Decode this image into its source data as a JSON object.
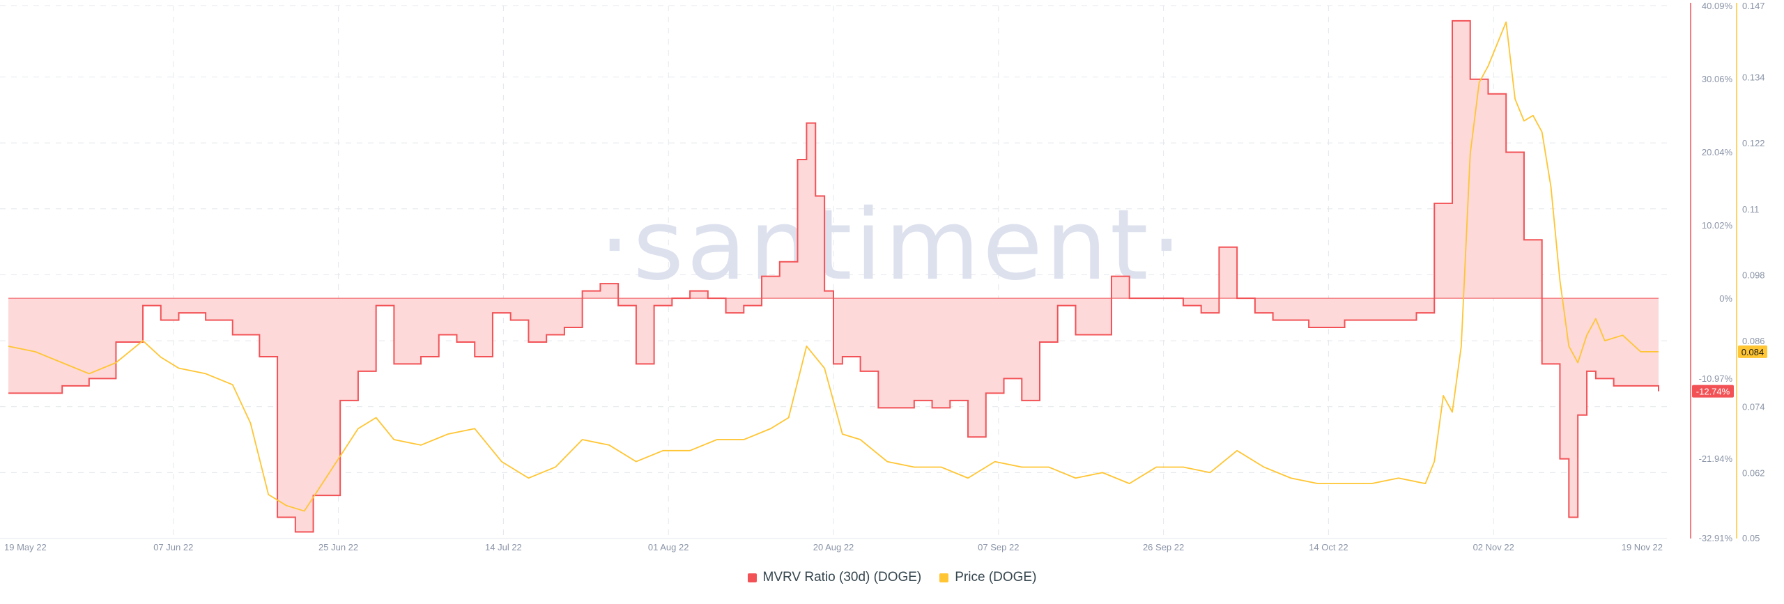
{
  "watermark": "·santiment·",
  "chart_data": {
    "type": "line",
    "x_ticks": [
      "19 May 22",
      "07 Jun 22",
      "25 Jun 22",
      "14 Jul 22",
      "01 Aug 22",
      "20 Aug 22",
      "07 Sep 22",
      "26 Sep 22",
      "14 Oct 22",
      "02 Nov 22",
      "19 Nov 22"
    ],
    "x_start": "2022-05-19",
    "x_end": "2022-11-19",
    "left_axis": {
      "ticks": [
        "40.09%",
        "30.06%",
        "20.04%",
        "10.02%",
        "0%",
        "-10.97%",
        "-21.94%",
        "-32.91%"
      ],
      "range": [
        -32.91,
        40.09
      ],
      "unit": "%"
    },
    "right_axis": {
      "ticks": [
        "0.147",
        "0.134",
        "0.122",
        "0.11",
        "0.098",
        "0.086",
        "0.074",
        "0.062",
        "0.05"
      ],
      "range": [
        0.05,
        0.147
      ]
    },
    "series": [
      {
        "name": "MVRV Ratio (30d) (DOGE)",
        "color": "#f25256",
        "fill": "#fdd9da",
        "axis": "left",
        "current_label": "-12.74%",
        "x": [
          "2022-05-19",
          "2022-05-22",
          "2022-05-25",
          "2022-05-28",
          "2022-05-31",
          "2022-06-03",
          "2022-06-05",
          "2022-06-07",
          "2022-06-10",
          "2022-06-13",
          "2022-06-16",
          "2022-06-18",
          "2022-06-20",
          "2022-06-22",
          "2022-06-25",
          "2022-06-27",
          "2022-06-29",
          "2022-07-01",
          "2022-07-04",
          "2022-07-06",
          "2022-07-08",
          "2022-07-10",
          "2022-07-12",
          "2022-07-14",
          "2022-07-16",
          "2022-07-18",
          "2022-07-20",
          "2022-07-22",
          "2022-07-24",
          "2022-07-26",
          "2022-07-28",
          "2022-07-30",
          "2022-08-01",
          "2022-08-03",
          "2022-08-05",
          "2022-08-07",
          "2022-08-09",
          "2022-08-11",
          "2022-08-13",
          "2022-08-15",
          "2022-08-16",
          "2022-08-17",
          "2022-08-18",
          "2022-08-19",
          "2022-08-20",
          "2022-08-22",
          "2022-08-24",
          "2022-08-26",
          "2022-08-28",
          "2022-08-30",
          "2022-09-01",
          "2022-09-03",
          "2022-09-05",
          "2022-09-07",
          "2022-09-09",
          "2022-09-11",
          "2022-09-13",
          "2022-09-15",
          "2022-09-17",
          "2022-09-19",
          "2022-09-21",
          "2022-09-23",
          "2022-09-25",
          "2022-09-27",
          "2022-09-29",
          "2022-10-01",
          "2022-10-03",
          "2022-10-05",
          "2022-10-07",
          "2022-10-09",
          "2022-10-11",
          "2022-10-13",
          "2022-10-15",
          "2022-10-17",
          "2022-10-19",
          "2022-10-21",
          "2022-10-23",
          "2022-10-25",
          "2022-10-27",
          "2022-10-29",
          "2022-10-31",
          "2022-11-02",
          "2022-11-04",
          "2022-11-06",
          "2022-11-08",
          "2022-11-09",
          "2022-11-10",
          "2022-11-11",
          "2022-11-12",
          "2022-11-14",
          "2022-11-16",
          "2022-11-18",
          "2022-11-19"
        ],
        "values": [
          -13,
          -13,
          -12,
          -11,
          -6,
          -1,
          -3,
          -2,
          -3,
          -5,
          -8,
          -30,
          -32,
          -27,
          -14,
          -10,
          -1,
          -9,
          -8,
          -5,
          -6,
          -8,
          -2,
          -3,
          -6,
          -5,
          -4,
          1,
          2,
          -1,
          -9,
          -1,
          0,
          1,
          0,
          -2,
          -1,
          3,
          5,
          19,
          24,
          14,
          1,
          -9,
          -8,
          -10,
          -15,
          -15,
          -14,
          -15,
          -14,
          -19,
          -13,
          -11,
          -14,
          -6,
          -1,
          -5,
          -5,
          3,
          0,
          0,
          0,
          -1,
          -2,
          7,
          0,
          -2,
          -3,
          -3,
          -4,
          -4,
          -3,
          -3,
          -3,
          -3,
          -2,
          13,
          38,
          30,
          28,
          20,
          8,
          -9,
          -22,
          -30,
          -16,
          -10,
          -11,
          -12,
          -12,
          -12,
          -12.74
        ]
      },
      {
        "name": "Price (DOGE)",
        "color": "#ffc532",
        "axis": "right",
        "current_label": "0.084",
        "x": [
          "2022-05-19",
          "2022-05-22",
          "2022-05-25",
          "2022-05-28",
          "2022-05-31",
          "2022-06-03",
          "2022-06-05",
          "2022-06-07",
          "2022-06-10",
          "2022-06-13",
          "2022-06-15",
          "2022-06-17",
          "2022-06-19",
          "2022-06-21",
          "2022-06-23",
          "2022-06-25",
          "2022-06-27",
          "2022-06-29",
          "2022-07-01",
          "2022-07-04",
          "2022-07-07",
          "2022-07-10",
          "2022-07-13",
          "2022-07-16",
          "2022-07-19",
          "2022-07-22",
          "2022-07-25",
          "2022-07-28",
          "2022-07-31",
          "2022-08-03",
          "2022-08-06",
          "2022-08-09",
          "2022-08-12",
          "2022-08-14",
          "2022-08-16",
          "2022-08-18",
          "2022-08-20",
          "2022-08-22",
          "2022-08-25",
          "2022-08-28",
          "2022-08-31",
          "2022-09-03",
          "2022-09-06",
          "2022-09-09",
          "2022-09-12",
          "2022-09-15",
          "2022-09-18",
          "2022-09-21",
          "2022-09-24",
          "2022-09-27",
          "2022-09-30",
          "2022-10-03",
          "2022-10-06",
          "2022-10-09",
          "2022-10-12",
          "2022-10-15",
          "2022-10-18",
          "2022-10-21",
          "2022-10-24",
          "2022-10-25",
          "2022-10-26",
          "2022-10-27",
          "2022-10-28",
          "2022-10-29",
          "2022-10-30",
          "2022-10-31",
          "2022-11-01",
          "2022-11-02",
          "2022-11-03",
          "2022-11-04",
          "2022-11-05",
          "2022-11-06",
          "2022-11-07",
          "2022-11-08",
          "2022-11-09",
          "2022-11-10",
          "2022-11-11",
          "2022-11-12",
          "2022-11-13",
          "2022-11-15",
          "2022-11-17",
          "2022-11-19"
        ],
        "values": [
          0.085,
          0.084,
          0.082,
          0.08,
          0.082,
          0.086,
          0.083,
          0.081,
          0.08,
          0.078,
          0.071,
          0.058,
          0.056,
          0.055,
          0.06,
          0.065,
          0.07,
          0.072,
          0.068,
          0.067,
          0.069,
          0.07,
          0.064,
          0.061,
          0.063,
          0.068,
          0.067,
          0.064,
          0.066,
          0.066,
          0.068,
          0.068,
          0.07,
          0.072,
          0.085,
          0.081,
          0.069,
          0.068,
          0.064,
          0.063,
          0.063,
          0.061,
          0.064,
          0.063,
          0.063,
          0.061,
          0.062,
          0.06,
          0.063,
          0.063,
          0.062,
          0.066,
          0.063,
          0.061,
          0.06,
          0.06,
          0.06,
          0.061,
          0.06,
          0.064,
          0.076,
          0.073,
          0.085,
          0.12,
          0.133,
          0.136,
          0.14,
          0.144,
          0.13,
          0.126,
          0.127,
          0.124,
          0.114,
          0.097,
          0.085,
          0.082,
          0.087,
          0.09,
          0.086,
          0.087,
          0.084,
          0.084
        ]
      }
    ],
    "legend": "bottom-center",
    "grid": true
  }
}
